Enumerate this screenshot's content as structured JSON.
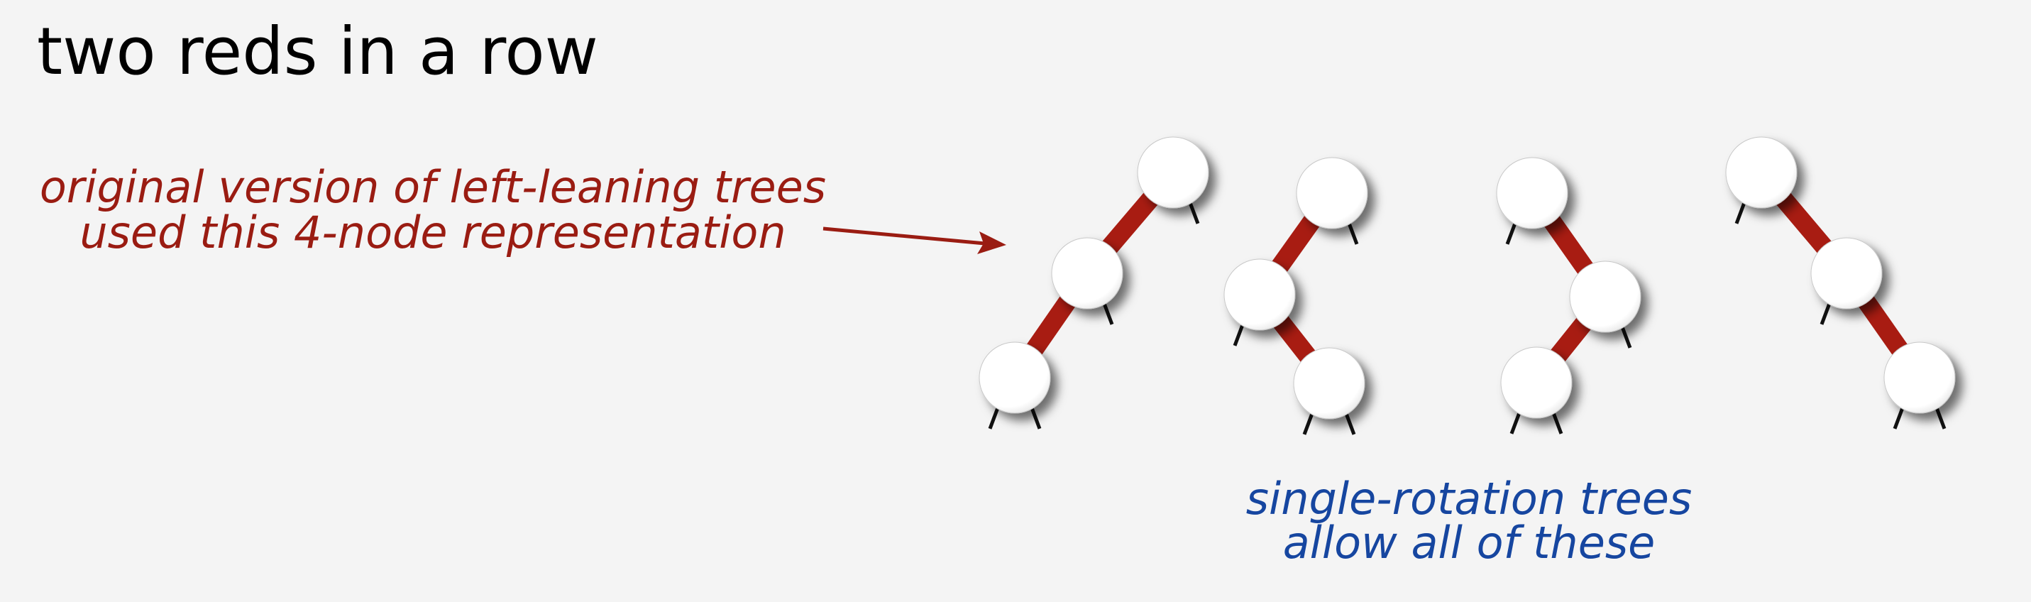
{
  "title": "two reds in a row",
  "annotations": {
    "original_version": {
      "lines": [
        "original version of left-leaning trees",
        "used this 4-node representation"
      ],
      "color": "#9a1c12"
    },
    "single_rotation": {
      "lines": [
        "single-rotation trees",
        "allow all of these"
      ],
      "color": "#1646a0"
    }
  },
  "colors": {
    "red_link": "#a81c12",
    "node_fill": "#ffffff",
    "node_edge": "#c8c8c8",
    "null_link": "#111111"
  },
  "trees": [
    {
      "shape": "left-left",
      "links": [
        "red",
        "red"
      ]
    },
    {
      "shape": "left-right",
      "links": [
        "red",
        "red"
      ]
    },
    {
      "shape": "right-left",
      "links": [
        "red",
        "red"
      ]
    },
    {
      "shape": "right-right",
      "links": [
        "red",
        "red"
      ]
    }
  ]
}
